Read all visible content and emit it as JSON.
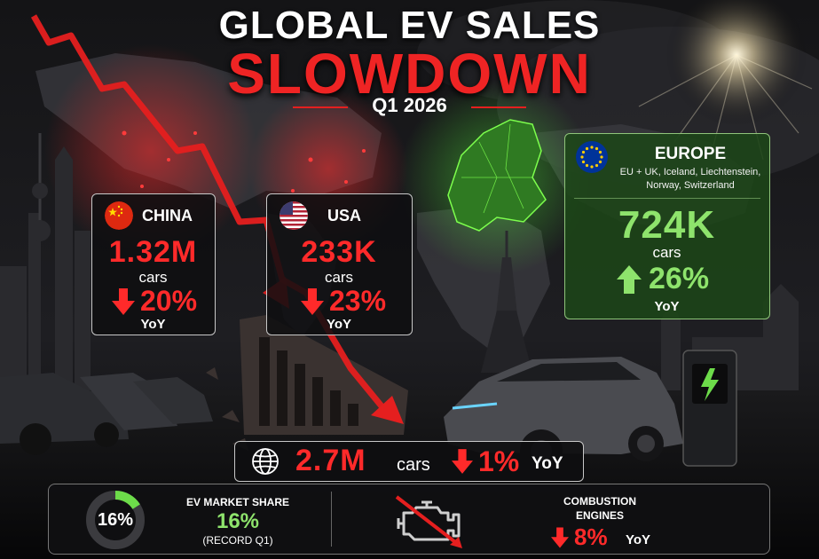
{
  "header": {
    "title_line1": "GLOBAL EV SALES",
    "title_line2": "SLOWDOWN",
    "subtitle": "Q1 2026"
  },
  "colors": {
    "decline_red": "#ef2424",
    "growth_green": "#8ee36c",
    "europe_panel": "#1c4618"
  },
  "china": {
    "region": "CHINA",
    "flag": "china-flag-icon",
    "sales": "1.32M",
    "unit": "cars",
    "change": "20%",
    "direction": "down",
    "period": "YoY"
  },
  "usa": {
    "region": "USA",
    "flag": "usa-flag-icon",
    "sales": "233K",
    "unit": "cars",
    "change": "23%",
    "direction": "down",
    "period": "YoY"
  },
  "europe": {
    "region": "EUROPE",
    "flag": "eu-flag-icon",
    "note_line1": "EU + UK, Iceland, Liechtenstein,",
    "note_line2": "Norway, Switzerland",
    "sales": "724K",
    "unit": "cars",
    "change": "26%",
    "direction": "up",
    "period": "YoY"
  },
  "global": {
    "icon": "globe-icon",
    "sales": "2.7M",
    "unit": "cars",
    "change": "1%",
    "direction": "down",
    "period": "YoY"
  },
  "market_share": {
    "ring_value": "16%",
    "ring_fraction": 0.16,
    "label": "EV MARKET SHARE",
    "value": "16%",
    "note": "(RECORD Q1)"
  },
  "combustion": {
    "icon": "engine-crossed-icon",
    "label_line1": "COMBUSTION",
    "label_line2": "ENGINES",
    "change": "8%",
    "direction": "down",
    "period": "YoY"
  }
}
